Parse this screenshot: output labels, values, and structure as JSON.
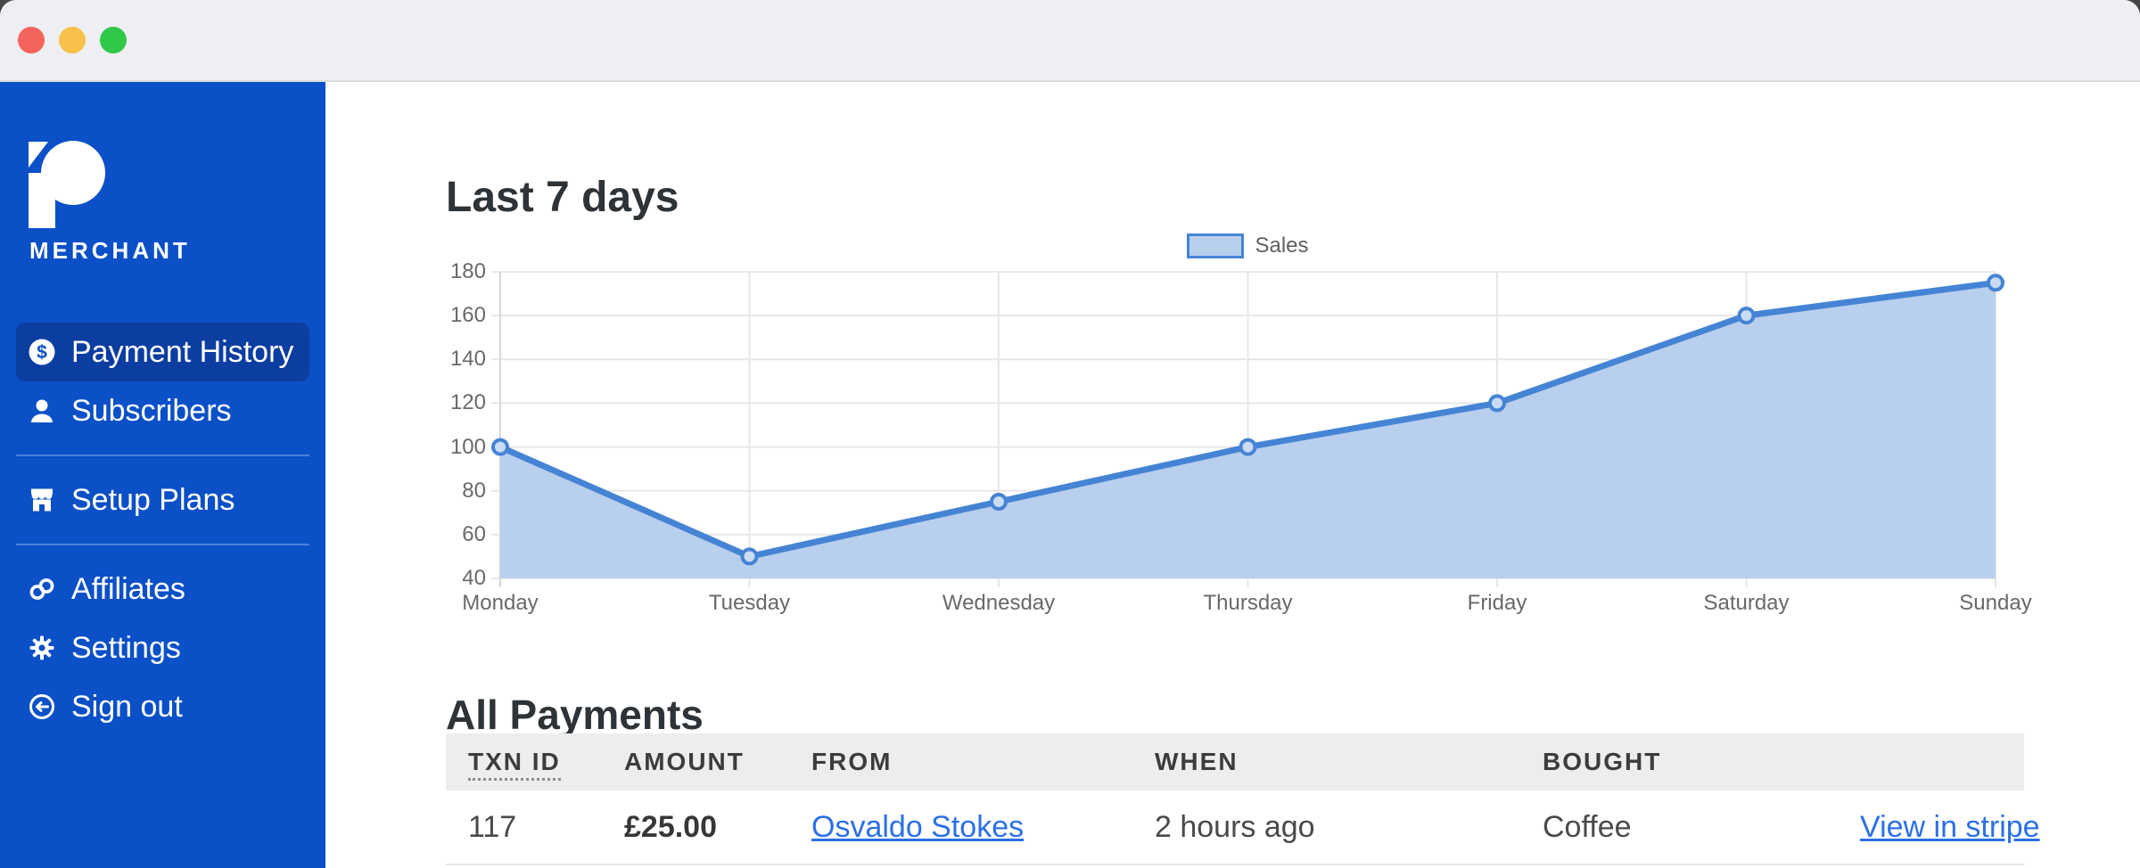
{
  "window": {
    "titlebar_buttons": [
      "close",
      "minimize",
      "maximize"
    ]
  },
  "sidebar": {
    "brand": "MERCHANT",
    "items": [
      {
        "label": "Payment History",
        "icon": "dollar-circle-icon",
        "active": true
      },
      {
        "label": "Subscribers",
        "icon": "person-icon",
        "divider_after": true
      },
      {
        "label": "Setup Plans",
        "icon": "storefront-icon",
        "divider_after": true
      },
      {
        "label": "Affiliates",
        "icon": "chain-link-icon"
      },
      {
        "label": "Settings",
        "icon": "gear-icon"
      },
      {
        "label": "Sign out",
        "icon": "sign-out-icon"
      }
    ]
  },
  "main": {
    "payments_title": "All Payments",
    "table": {
      "headers": [
        "TXN ID",
        "AMOUNT",
        "FROM",
        "WHEN",
        "BOUGHT",
        ""
      ],
      "rows": [
        {
          "txn_id": "117",
          "amount": "£25.00",
          "from": "Osvaldo Stokes",
          "when": "2 hours ago",
          "bought": "Coffee",
          "action": "View in stripe"
        }
      ]
    }
  },
  "chart_data": {
    "type": "area",
    "title": "Last 7 days",
    "x": [
      "Monday",
      "Tuesday",
      "Wednesday",
      "Thursday",
      "Friday",
      "Saturday",
      "Sunday"
    ],
    "series": [
      {
        "name": "Sales",
        "values": [
          100,
          50,
          75,
          100,
          120,
          160,
          175
        ]
      }
    ],
    "ylim": [
      40,
      180
    ],
    "ytick_step": 20,
    "grid": true,
    "legend_position": "top",
    "line_color": "#4584d4",
    "fill_color": "#b9cfee",
    "point_fill": "#cadcf3"
  },
  "colors": {
    "sidebar_bg": "#0b50c7",
    "sidebar_active_bg": "#0c3da1",
    "titlebar_bg": "#edeff2",
    "link": "#2b70e6",
    "chart_line": "#4584d4",
    "chart_fill": "#b9cfee",
    "traffic_red": "#f4645c",
    "traffic_yellow": "#f9c04a",
    "traffic_green": "#31c748"
  }
}
